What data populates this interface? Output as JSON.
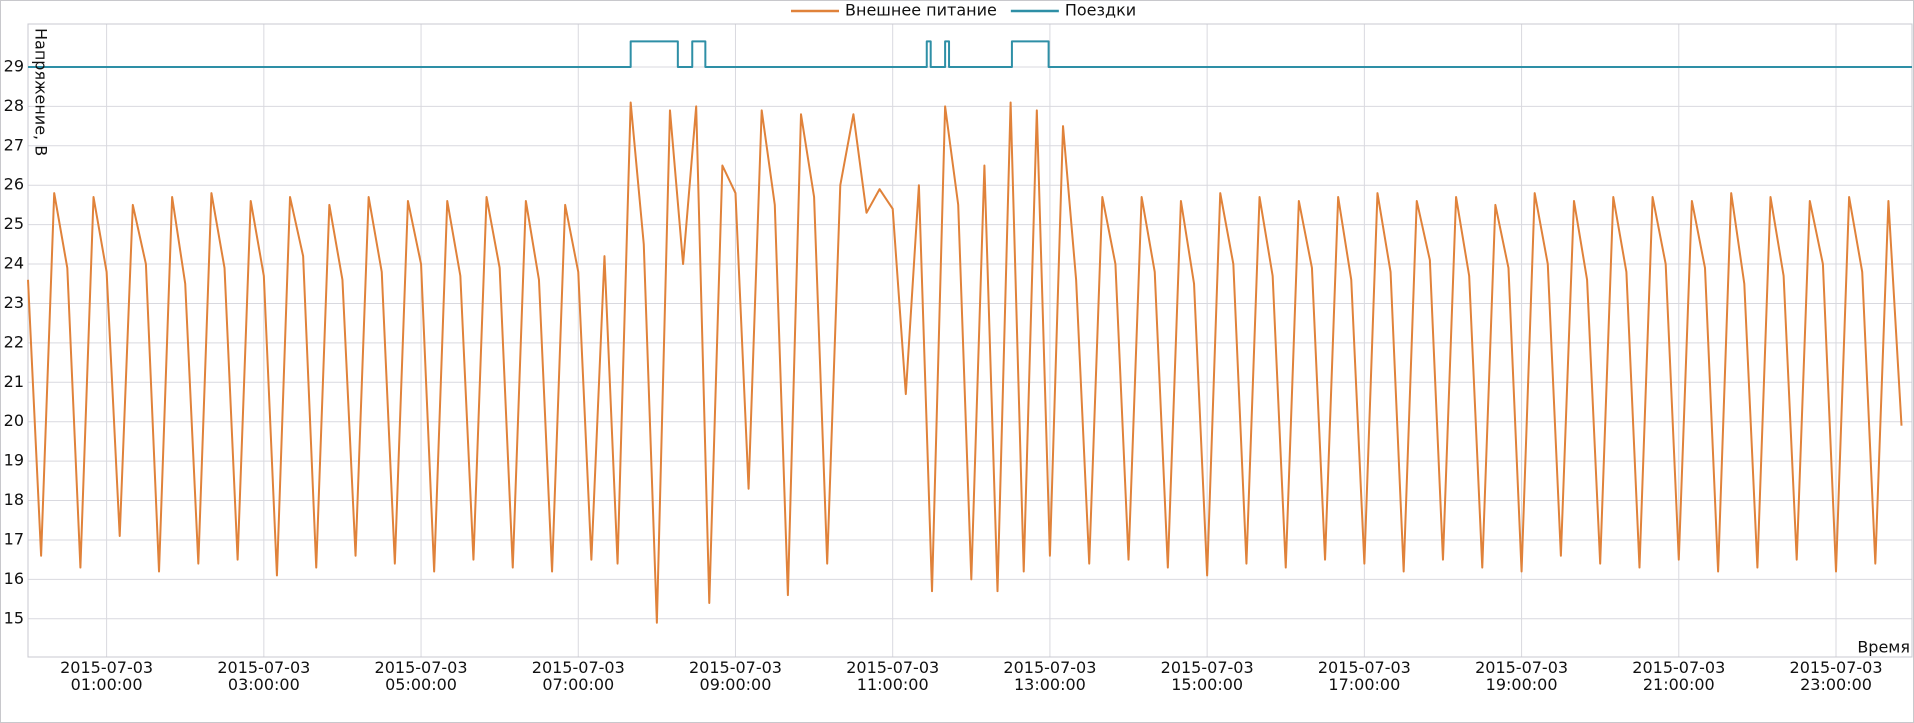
{
  "chart_data": {
    "type": "line",
    "x_label": "Время",
    "y_label": "Напряжение, В",
    "xlim": [
      "2015-07-03 00:00:00",
      "2015-07-03 23:58:00"
    ],
    "xticks": [
      "2015-07-03 01:00:00",
      "2015-07-03 03:00:00",
      "2015-07-03 05:00:00",
      "2015-07-03 07:00:00",
      "2015-07-03 09:00:00",
      "2015-07-03 11:00:00",
      "2015-07-03 13:00:00",
      "2015-07-03 15:00:00",
      "2015-07-03 17:00:00",
      "2015-07-03 19:00:00",
      "2015-07-03 21:00:00",
      "2015-07-03 23:00:00"
    ],
    "ylim": [
      14.03,
      30.09
    ],
    "yticks": [
      15,
      16,
      17,
      18,
      19,
      20,
      21,
      22,
      23,
      24,
      25,
      26,
      27,
      28,
      29
    ],
    "grid": true,
    "legend": "top",
    "series": [
      {
        "name": "Внешнее питание",
        "color": "#e0823a",
        "x": [
          "2015-07-03 00:00:00",
          "2015-07-03 00:10:00",
          "2015-07-03 00:20:00",
          "2015-07-03 00:30:00",
          "2015-07-03 00:40:00",
          "2015-07-03 00:50:00",
          "2015-07-03 01:00:00",
          "2015-07-03 01:10:00",
          "2015-07-03 01:20:00",
          "2015-07-03 01:30:00",
          "2015-07-03 01:40:00",
          "2015-07-03 01:50:00",
          "2015-07-03 02:00:00",
          "2015-07-03 02:10:00",
          "2015-07-03 02:20:00",
          "2015-07-03 02:30:00",
          "2015-07-03 02:40:00",
          "2015-07-03 02:50:00",
          "2015-07-03 03:00:00",
          "2015-07-03 03:10:00",
          "2015-07-03 03:20:00",
          "2015-07-03 03:30:00",
          "2015-07-03 03:40:00",
          "2015-07-03 03:50:00",
          "2015-07-03 04:00:00",
          "2015-07-03 04:10:00",
          "2015-07-03 04:20:00",
          "2015-07-03 04:30:00",
          "2015-07-03 04:40:00",
          "2015-07-03 04:50:00",
          "2015-07-03 05:00:00",
          "2015-07-03 05:10:00",
          "2015-07-03 05:20:00",
          "2015-07-03 05:30:00",
          "2015-07-03 05:40:00",
          "2015-07-03 05:50:00",
          "2015-07-03 06:00:00",
          "2015-07-03 06:10:00",
          "2015-07-03 06:20:00",
          "2015-07-03 06:30:00",
          "2015-07-03 06:40:00",
          "2015-07-03 06:50:00",
          "2015-07-03 07:00:00",
          "2015-07-03 07:10:00",
          "2015-07-03 07:20:00",
          "2015-07-03 07:30:00",
          "2015-07-03 07:40:00",
          "2015-07-03 07:50:00",
          "2015-07-03 08:00:00",
          "2015-07-03 08:10:00",
          "2015-07-03 08:20:00",
          "2015-07-03 08:30:00",
          "2015-07-03 08:40:00",
          "2015-07-03 08:50:00",
          "2015-07-03 09:00:00",
          "2015-07-03 09:10:00",
          "2015-07-03 09:20:00",
          "2015-07-03 09:30:00",
          "2015-07-03 09:40:00",
          "2015-07-03 09:50:00",
          "2015-07-03 10:00:00",
          "2015-07-03 10:10:00",
          "2015-07-03 10:20:00",
          "2015-07-03 10:30:00",
          "2015-07-03 10:40:00",
          "2015-07-03 10:50:00",
          "2015-07-03 11:00:00",
          "2015-07-03 11:10:00",
          "2015-07-03 11:20:00",
          "2015-07-03 11:30:00",
          "2015-07-03 11:40:00",
          "2015-07-03 11:50:00",
          "2015-07-03 12:00:00",
          "2015-07-03 12:10:00",
          "2015-07-03 12:20:00",
          "2015-07-03 12:30:00",
          "2015-07-03 12:40:00",
          "2015-07-03 12:50:00",
          "2015-07-03 13:00:00",
          "2015-07-03 13:10:00",
          "2015-07-03 13:20:00",
          "2015-07-03 13:30:00",
          "2015-07-03 13:40:00",
          "2015-07-03 13:50:00",
          "2015-07-03 14:00:00",
          "2015-07-03 14:10:00",
          "2015-07-03 14:20:00",
          "2015-07-03 14:30:00",
          "2015-07-03 14:40:00",
          "2015-07-03 14:50:00",
          "2015-07-03 15:00:00",
          "2015-07-03 15:10:00",
          "2015-07-03 15:20:00",
          "2015-07-03 15:30:00",
          "2015-07-03 15:40:00",
          "2015-07-03 15:50:00",
          "2015-07-03 16:00:00",
          "2015-07-03 16:10:00",
          "2015-07-03 16:20:00",
          "2015-07-03 16:30:00",
          "2015-07-03 16:40:00",
          "2015-07-03 16:50:00",
          "2015-07-03 17:00:00",
          "2015-07-03 17:10:00",
          "2015-07-03 17:20:00",
          "2015-07-03 17:30:00",
          "2015-07-03 17:40:00",
          "2015-07-03 17:50:00",
          "2015-07-03 18:00:00",
          "2015-07-03 18:10:00",
          "2015-07-03 18:20:00",
          "2015-07-03 18:30:00",
          "2015-07-03 18:40:00",
          "2015-07-03 18:50:00",
          "2015-07-03 19:00:00",
          "2015-07-03 19:10:00",
          "2015-07-03 19:20:00",
          "2015-07-03 19:30:00",
          "2015-07-03 19:40:00",
          "2015-07-03 19:50:00",
          "2015-07-03 20:00:00",
          "2015-07-03 20:10:00",
          "2015-07-03 20:20:00",
          "2015-07-03 20:30:00",
          "2015-07-03 20:40:00",
          "2015-07-03 20:50:00",
          "2015-07-03 21:00:00",
          "2015-07-03 21:10:00",
          "2015-07-03 21:20:00",
          "2015-07-03 21:30:00",
          "2015-07-03 21:40:00",
          "2015-07-03 21:50:00",
          "2015-07-03 22:00:00",
          "2015-07-03 22:10:00",
          "2015-07-03 22:20:00",
          "2015-07-03 22:30:00",
          "2015-07-03 22:40:00",
          "2015-07-03 22:50:00",
          "2015-07-03 23:00:00",
          "2015-07-03 23:10:00",
          "2015-07-03 23:20:00",
          "2015-07-03 23:30:00",
          "2015-07-03 23:40:00",
          "2015-07-03 23:50:00"
        ],
        "values": [
          23.6,
          16.6,
          25.8,
          23.9,
          16.3,
          25.7,
          23.8,
          17.1,
          25.5,
          24.0,
          16.2,
          25.7,
          23.5,
          16.4,
          25.8,
          23.9,
          16.5,
          25.6,
          23.7,
          16.1,
          25.7,
          24.2,
          16.3,
          25.5,
          23.6,
          16.6,
          25.7,
          23.8,
          16.4,
          25.6,
          24.0,
          16.2,
          25.6,
          23.7,
          16.5,
          25.7,
          23.9,
          16.3,
          25.6,
          23.6,
          16.2,
          25.5,
          23.8,
          16.5,
          24.2,
          16.4,
          28.1,
          24.5,
          14.9,
          27.9,
          24.0,
          28.0,
          15.4,
          26.5,
          25.8,
          18.3,
          27.9,
          25.5,
          15.6,
          27.8,
          25.7,
          16.4,
          26.0,
          27.8,
          25.3,
          25.9,
          25.4,
          20.7,
          26.0,
          15.7,
          28.0,
          25.5,
          16.0,
          26.5,
          15.7,
          28.1,
          16.2,
          27.9,
          16.6,
          27.5,
          23.6,
          16.4,
          25.7,
          24.0,
          16.5,
          25.7,
          23.8,
          16.3,
          25.6,
          23.5,
          16.1,
          25.8,
          24.0,
          16.4,
          25.7,
          23.7,
          16.3,
          25.6,
          23.9,
          16.5,
          25.7,
          23.6,
          16.4,
          25.8,
          23.8,
          16.2,
          25.6,
          24.1,
          16.5,
          25.7,
          23.7,
          16.3,
          25.5,
          23.9,
          16.2,
          25.8,
          24.0,
          16.6,
          25.6,
          23.6,
          16.4,
          25.7,
          23.8,
          16.3,
          25.7,
          24.0,
          16.5,
          25.6,
          23.9,
          16.2,
          25.8,
          23.5,
          16.3,
          25.7,
          23.7,
          16.5,
          25.6,
          24.0,
          16.2,
          25.7,
          23.8,
          16.4,
          25.6,
          19.9
        ]
      },
      {
        "name": "Поездки",
        "color": "#2e8fa6",
        "x": [
          "2015-07-03 00:00:00",
          "2015-07-03 07:40:00",
          "2015-07-03 07:40:00",
          "2015-07-03 08:16:00",
          "2015-07-03 08:16:00",
          "2015-07-03 08:27:00",
          "2015-07-03 08:27:00",
          "2015-07-03 08:37:00",
          "2015-07-03 08:37:00",
          "2015-07-03 11:26:00",
          "2015-07-03 11:26:00",
          "2015-07-03 11:29:00",
          "2015-07-03 11:29:00",
          "2015-07-03 11:40:00",
          "2015-07-03 11:40:00",
          "2015-07-03 11:43:00",
          "2015-07-03 11:43:00",
          "2015-07-03 12:31:00",
          "2015-07-03 12:31:00",
          "2015-07-03 12:59:00",
          "2015-07-03 12:59:00",
          "2015-07-03 23:58:00"
        ],
        "values": [
          29,
          29,
          29.65,
          29.65,
          29,
          29,
          29.65,
          29.65,
          29,
          29,
          29.65,
          29.65,
          29,
          29,
          29.65,
          29.65,
          29,
          29,
          29.65,
          29.65,
          29,
          29
        ]
      }
    ]
  }
}
